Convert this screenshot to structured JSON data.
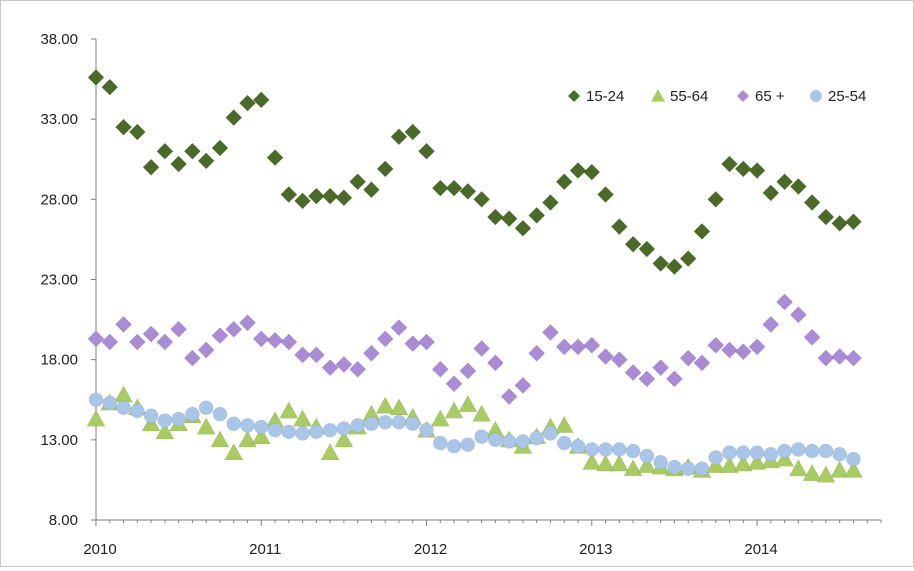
{
  "chart_data": {
    "type": "scatter",
    "title": "",
    "xlabel": "",
    "ylabel": "",
    "ylim": [
      8,
      38
    ],
    "xlim": [
      2010,
      2014.75
    ],
    "y_ticks": [
      "38.00",
      "33.00",
      "28.00",
      "23.00",
      "18.00",
      "13.00",
      "8.00"
    ],
    "x_ticks": [
      "2010",
      "2011",
      "2012",
      "2013",
      "2014"
    ],
    "grid": false,
    "legend_position": "top-right",
    "series": [
      {
        "name": "15-24",
        "marker": "diamond",
        "color": "#4a6b28",
        "values": [
          35.6,
          35.0,
          32.5,
          32.2,
          30.0,
          31.0,
          30.2,
          31.0,
          30.4,
          31.2,
          33.1,
          34.0,
          34.2,
          30.6,
          28.3,
          27.9,
          28.2,
          28.2,
          28.1,
          29.1,
          28.6,
          29.9,
          31.9,
          32.2,
          31.0,
          28.7,
          28.7,
          28.5,
          28.0,
          26.9,
          26.8,
          26.2,
          27.0,
          27.8,
          29.1,
          29.8,
          29.7,
          28.3,
          26.3,
          25.2,
          24.9,
          24.0,
          23.8,
          24.3,
          26.0,
          28.0,
          30.2,
          29.9,
          29.8,
          28.4,
          29.1,
          28.8,
          27.8,
          26.9,
          26.5,
          26.6
        ]
      },
      {
        "name": "55-64",
        "marker": "triangle",
        "color": "#a8cc62",
        "values": [
          14.3,
          15.3,
          15.8,
          15.0,
          14.0,
          13.5,
          14.0,
          14.5,
          13.8,
          13.0,
          12.2,
          13.0,
          13.2,
          14.2,
          14.8,
          14.3,
          13.8,
          12.2,
          13.0,
          13.8,
          14.6,
          15.1,
          15.0,
          14.4,
          13.6,
          14.3,
          14.8,
          15.2,
          14.6,
          13.6,
          13.0,
          12.6,
          13.2,
          13.8,
          13.9,
          12.6,
          11.6,
          11.5,
          11.5,
          11.2,
          11.4,
          11.3,
          11.2,
          11.3,
          11.1,
          11.4,
          11.4,
          11.5,
          11.6,
          11.7,
          11.8,
          11.2,
          10.9,
          10.8,
          11.1,
          11.1
        ]
      },
      {
        "name": "65 +",
        "marker": "diamond",
        "color": "#a98bd6",
        "values": [
          19.3,
          19.1,
          20.2,
          19.1,
          19.6,
          19.1,
          19.9,
          18.1,
          18.6,
          19.5,
          19.9,
          20.3,
          19.3,
          19.2,
          19.1,
          18.3,
          18.3,
          17.5,
          17.7,
          17.4,
          18.4,
          19.3,
          20.0,
          19.0,
          19.1,
          17.4,
          16.5,
          17.3,
          18.7,
          17.8,
          15.7,
          16.4,
          18.4,
          19.7,
          18.8,
          18.8,
          18.9,
          18.2,
          18.0,
          17.2,
          16.8,
          17.5,
          16.8,
          18.1,
          17.8,
          18.9,
          18.6,
          18.5,
          18.8,
          20.2,
          21.6,
          20.8,
          19.4,
          18.1,
          18.2,
          18.1
        ]
      },
      {
        "name": "25-54",
        "marker": "circle",
        "color": "#a9c6e8",
        "values": [
          15.5,
          15.3,
          15.0,
          14.8,
          14.5,
          14.2,
          14.3,
          14.6,
          15.0,
          14.6,
          14.0,
          13.9,
          13.8,
          13.6,
          13.5,
          13.4,
          13.5,
          13.6,
          13.7,
          13.9,
          14.0,
          14.1,
          14.1,
          14.0,
          13.6,
          12.8,
          12.6,
          12.7,
          13.2,
          13.0,
          12.9,
          12.9,
          13.1,
          13.4,
          12.8,
          12.6,
          12.4,
          12.4,
          12.4,
          12.3,
          12.0,
          11.6,
          11.3,
          11.2,
          11.2,
          11.9,
          12.2,
          12.2,
          12.2,
          12.1,
          12.3,
          12.4,
          12.3,
          12.3,
          12.1,
          11.8
        ]
      }
    ]
  }
}
